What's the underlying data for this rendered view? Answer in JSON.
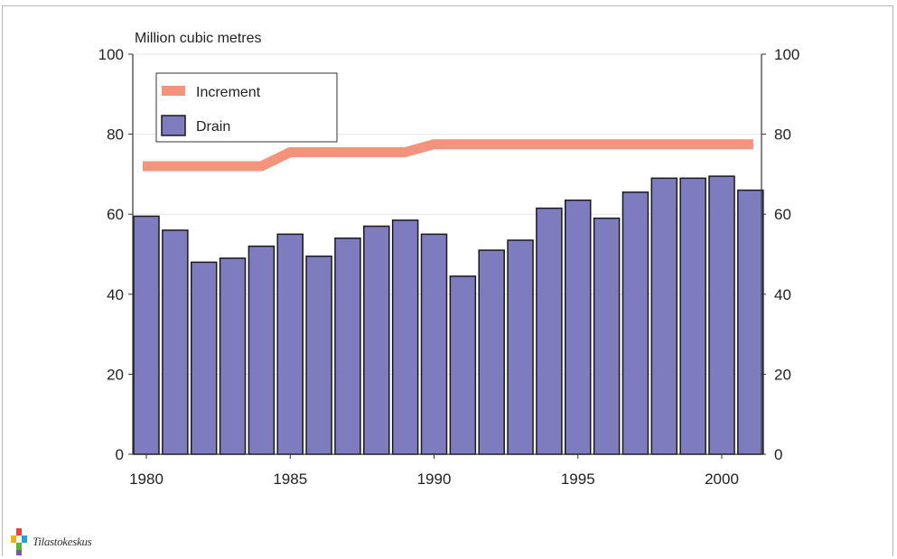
{
  "chart_data": {
    "type": "bar",
    "unit_label": "Million cubic metres",
    "categories": [
      1980,
      1981,
      1982,
      1983,
      1984,
      1985,
      1986,
      1987,
      1988,
      1989,
      1990,
      1991,
      1992,
      1993,
      1994,
      1995,
      1996,
      1997,
      1998,
      1999,
      2000,
      2001
    ],
    "x_tick_labels": [
      "1980",
      "1985",
      "1990",
      "1995",
      "2000"
    ],
    "x_tick_years": [
      1980,
      1985,
      1990,
      1995,
      2000
    ],
    "y_tick_labels": [
      "0",
      "20",
      "40",
      "60",
      "80",
      "100"
    ],
    "y_tick_values": [
      0,
      20,
      40,
      60,
      80,
      100
    ],
    "ylim": [
      0,
      100
    ],
    "grid": true,
    "legend_placement": "top-left",
    "series": [
      {
        "name": "Increment",
        "type": "line",
        "color": "#f4937b",
        "values": [
          72,
          72,
          72,
          72,
          72,
          75.5,
          75.5,
          75.5,
          75.5,
          75.5,
          77.5,
          77.5,
          77.5,
          77.5,
          77.5,
          77.5,
          77.5,
          77.5,
          77.5,
          77.5,
          77.5,
          77.5
        ]
      },
      {
        "name": "Drain",
        "type": "bar",
        "color": "#7f7bbf",
        "values": [
          59.5,
          56,
          48,
          49,
          52,
          55,
          49.5,
          54,
          57,
          58.5,
          55,
          44.5,
          51,
          53.5,
          61.5,
          63.5,
          59,
          65.5,
          69,
          69,
          69.5,
          66
        ]
      }
    ]
  },
  "logo": {
    "text": "Tilastokeskus",
    "icon": "statistics-finland-logo-icon"
  }
}
